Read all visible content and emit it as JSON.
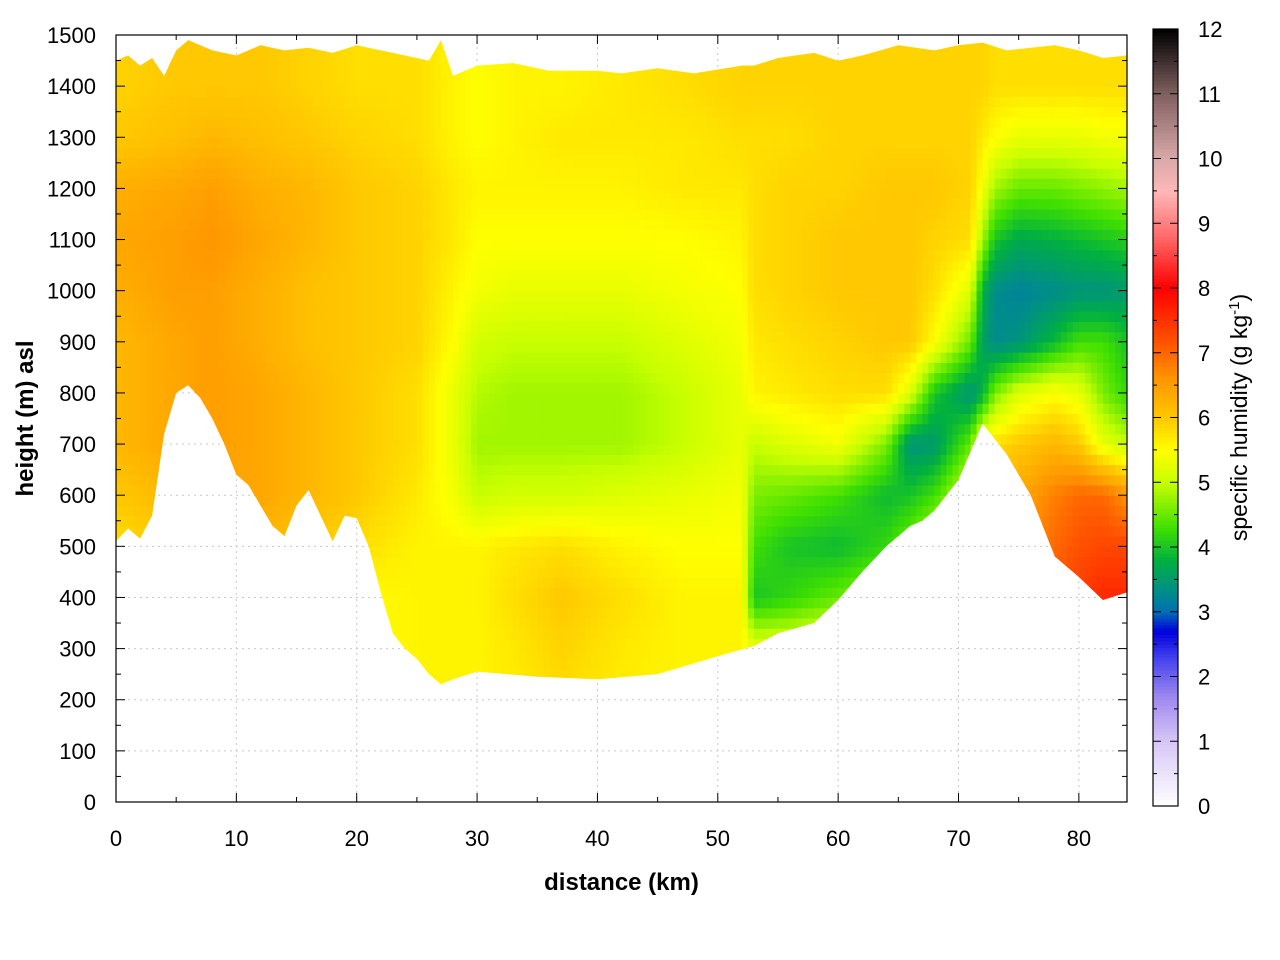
{
  "chart_data": {
    "type": "heatmap",
    "xlabel": "distance (km)",
    "ylabel": "height (m) asl",
    "colorbar_label": {
      "main": "specific humidity (g kg",
      "sup": "-1",
      "close": ")"
    },
    "xlim": [
      0,
      84
    ],
    "ylim": [
      0,
      1500
    ],
    "x_ticks": [
      0,
      10,
      20,
      30,
      40,
      50,
      60,
      70,
      80
    ],
    "y_ticks": [
      0,
      100,
      200,
      300,
      400,
      500,
      600,
      700,
      800,
      900,
      1000,
      1100,
      1200,
      1300,
      1400,
      1500
    ],
    "colorbar_ticks": [
      0,
      1,
      2,
      3,
      4,
      5,
      6,
      7,
      8,
      9,
      10,
      11,
      12
    ],
    "colorbar_range": [
      0,
      12
    ],
    "colormap": [
      [
        0,
        "#ffffff"
      ],
      [
        1,
        "#d7c6f7"
      ],
      [
        1.7,
        "#9d86ee"
      ],
      [
        2.3,
        "#4040ee"
      ],
      [
        2.7,
        "#0000dd"
      ],
      [
        3,
        "#006eb4"
      ],
      [
        3.3,
        "#008c8c"
      ],
      [
        3.8,
        "#00b040"
      ],
      [
        4.3,
        "#40e000"
      ],
      [
        5,
        "#c8ff00"
      ],
      [
        5.5,
        "#ffff00"
      ],
      [
        6,
        "#ffc800"
      ],
      [
        6.6,
        "#ff9600"
      ],
      [
        7.2,
        "#ff5000"
      ],
      [
        8,
        "#ff0000"
      ],
      [
        8.8,
        "#ff6a6a"
      ],
      [
        9.5,
        "#ffb8b8"
      ],
      [
        10,
        "#d9a9a9"
      ],
      [
        11,
        "#806060"
      ],
      [
        12,
        "#000000"
      ]
    ],
    "terrain": {
      "x": [
        0,
        1,
        2,
        3,
        4,
        5,
        6,
        7,
        8,
        9,
        10,
        11,
        12,
        13,
        14,
        15,
        16,
        17,
        18,
        19,
        20,
        21,
        22,
        23,
        24,
        25,
        26,
        27,
        28,
        30,
        35,
        40,
        45,
        50,
        53,
        55,
        58,
        60,
        62,
        64,
        66,
        67,
        68,
        70,
        72,
        74,
        76,
        78,
        80,
        82,
        84
      ],
      "y": [
        510,
        535,
        515,
        560,
        720,
        800,
        815,
        790,
        750,
        700,
        640,
        620,
        580,
        540,
        520,
        580,
        610,
        560,
        510,
        560,
        555,
        500,
        410,
        330,
        300,
        280,
        250,
        230,
        240,
        255,
        245,
        240,
        250,
        285,
        305,
        330,
        350,
        395,
        450,
        500,
        540,
        550,
        570,
        630,
        740,
        680,
        600,
        480,
        440,
        395,
        410
      ]
    },
    "top": {
      "x": [
        0,
        1,
        2,
        3,
        4,
        5,
        6,
        7,
        8,
        10,
        12,
        14,
        16,
        18,
        20,
        22,
        24,
        26,
        27,
        28,
        30,
        33,
        36,
        40,
        42,
        45,
        48,
        52,
        53,
        55,
        58,
        60,
        62,
        65,
        68,
        70,
        72,
        74,
        76,
        78,
        80,
        82,
        84
      ],
      "y": [
        1450,
        1460,
        1440,
        1455,
        1420,
        1470,
        1490,
        1480,
        1470,
        1460,
        1480,
        1470,
        1475,
        1465,
        1480,
        1470,
        1460,
        1450,
        1490,
        1420,
        1440,
        1445,
        1430,
        1430,
        1425,
        1435,
        1425,
        1440,
        1440,
        1455,
        1465,
        1450,
        1460,
        1480,
        1470,
        1480,
        1485,
        1470,
        1475,
        1480,
        1470,
        1455,
        1460
      ]
    },
    "field": {
      "note_units": "g/kg",
      "x": [
        0,
        5,
        8,
        12,
        16,
        20,
        25,
        28,
        30,
        33,
        37,
        42,
        47,
        52,
        53,
        56,
        60,
        64,
        66,
        68,
        71,
        72,
        73,
        75,
        78,
        80,
        82,
        84
      ],
      "z": [
        0,
        300,
        400,
        500,
        600,
        700,
        800,
        900,
        1000,
        1100,
        1200,
        1300,
        1400,
        1500
      ],
      "q": [
        [
          5.6,
          5.8,
          6.0,
          5.9,
          5.7,
          5.5,
          5.6,
          5.6,
          5.6,
          5.6,
          5.6,
          5.6,
          5.6,
          5.6,
          5.3,
          5.3,
          5.5,
          5.7,
          5.8,
          5.9,
          6.1,
          6.3,
          6.3,
          6.6,
          7.2,
          7.6,
          7.8,
          7.8
        ],
        [
          5.6,
          5.8,
          6.0,
          5.9,
          5.7,
          5.5,
          5.6,
          5.6,
          5.6,
          5.7,
          5.9,
          5.7,
          5.6,
          5.6,
          5.3,
          5.3,
          5.5,
          5.7,
          5.8,
          5.9,
          6.1,
          6.3,
          6.3,
          6.6,
          7.2,
          7.6,
          7.8,
          7.8
        ],
        [
          5.6,
          5.8,
          6.0,
          5.9,
          5.7,
          5.5,
          5.6,
          5.6,
          5.6,
          5.8,
          6.0,
          5.8,
          5.6,
          5.6,
          4.0,
          4.2,
          4.5,
          4.8,
          5.0,
          5.2,
          5.8,
          6.2,
          6.3,
          6.6,
          7.1,
          7.4,
          7.6,
          7.6
        ],
        [
          5.8,
          6.0,
          6.3,
          6.2,
          6.0,
          5.8,
          5.6,
          5.6,
          5.6,
          5.7,
          5.8,
          5.6,
          5.5,
          5.5,
          4.3,
          4.0,
          3.9,
          4.2,
          4.6,
          5.0,
          5.7,
          6.1,
          6.2,
          6.5,
          7.0,
          7.2,
          7.3,
          7.3
        ],
        [
          6.0,
          6.2,
          6.4,
          6.4,
          6.2,
          6.0,
          5.7,
          5.4,
          5.0,
          5.1,
          5.1,
          5.2,
          5.3,
          5.4,
          4.6,
          4.5,
          4.3,
          3.9,
          4.0,
          4.3,
          5.2,
          5.9,
          6.1,
          6.4,
          6.8,
          7.0,
          7.0,
          6.6
        ],
        [
          6.2,
          6.4,
          6.5,
          6.4,
          6.2,
          6.0,
          5.8,
          5.3,
          4.8,
          4.8,
          4.8,
          4.8,
          5.0,
          5.3,
          5.0,
          5.2,
          5.4,
          4.6,
          3.4,
          3.5,
          4.5,
          5.6,
          5.8,
          6.0,
          6.2,
          6.0,
          5.3,
          5.0
        ],
        [
          6.2,
          6.4,
          6.5,
          6.4,
          6.2,
          6.0,
          5.8,
          5.3,
          4.9,
          4.8,
          4.8,
          4.8,
          5.0,
          5.3,
          5.6,
          5.7,
          5.8,
          5.8,
          5.2,
          4.0,
          3.4,
          3.8,
          4.6,
          5.2,
          5.5,
          5.3,
          4.6,
          4.2
        ],
        [
          6.2,
          6.4,
          6.5,
          6.3,
          6.1,
          6.0,
          5.9,
          5.5,
          5.1,
          5.0,
          5.0,
          5.0,
          5.2,
          5.4,
          5.7,
          5.8,
          5.9,
          6.0,
          6.0,
          5.5,
          4.5,
          3.6,
          3.3,
          3.4,
          3.9,
          4.3,
          4.3,
          4.0
        ],
        [
          6.3,
          6.5,
          6.5,
          6.3,
          6.1,
          6.0,
          5.9,
          5.6,
          5.4,
          5.3,
          5.3,
          5.3,
          5.4,
          5.5,
          5.8,
          5.9,
          6.0,
          6.0,
          6.0,
          5.8,
          5.2,
          3.8,
          3.3,
          3.2,
          3.3,
          3.4,
          3.4,
          3.5
        ],
        [
          6.4,
          6.5,
          6.6,
          6.4,
          6.2,
          6.0,
          5.9,
          5.7,
          5.5,
          5.5,
          5.5,
          5.5,
          5.5,
          5.6,
          5.8,
          5.9,
          6.0,
          6.0,
          6.0,
          5.9,
          5.8,
          4.8,
          4.0,
          3.7,
          3.8,
          3.9,
          4.0,
          4.1
        ],
        [
          6.3,
          6.4,
          6.5,
          6.3,
          6.2,
          6.0,
          5.9,
          5.7,
          5.6,
          5.6,
          5.6,
          5.6,
          5.7,
          5.7,
          5.8,
          5.9,
          5.9,
          6.0,
          6.0,
          6.0,
          5.9,
          5.4,
          4.8,
          4.5,
          4.5,
          4.6,
          4.7,
          4.8
        ],
        [
          6.0,
          6.1,
          6.2,
          6.1,
          6.0,
          5.9,
          5.8,
          5.6,
          5.5,
          5.6,
          5.7,
          5.7,
          5.7,
          5.8,
          5.8,
          5.8,
          5.9,
          5.9,
          5.9,
          5.9,
          5.9,
          5.7,
          5.5,
          5.3,
          5.3,
          5.3,
          5.4,
          5.4
        ],
        [
          5.9,
          6.0,
          6.0,
          6.0,
          5.9,
          5.8,
          5.8,
          5.6,
          5.5,
          5.6,
          5.6,
          5.7,
          5.8,
          5.9,
          5.9,
          5.9,
          5.9,
          5.9,
          5.9,
          5.9,
          5.9,
          5.9,
          5.8,
          5.8,
          5.8,
          5.8,
          5.8,
          5.8
        ],
        [
          5.9,
          6.0,
          6.0,
          6.0,
          5.9,
          5.8,
          5.8,
          5.6,
          5.5,
          5.6,
          5.6,
          5.7,
          5.8,
          5.9,
          5.9,
          5.9,
          5.9,
          5.9,
          5.9,
          5.9,
          5.9,
          5.9,
          5.8,
          5.8,
          5.8,
          5.8,
          5.8,
          5.8
        ]
      ]
    }
  }
}
